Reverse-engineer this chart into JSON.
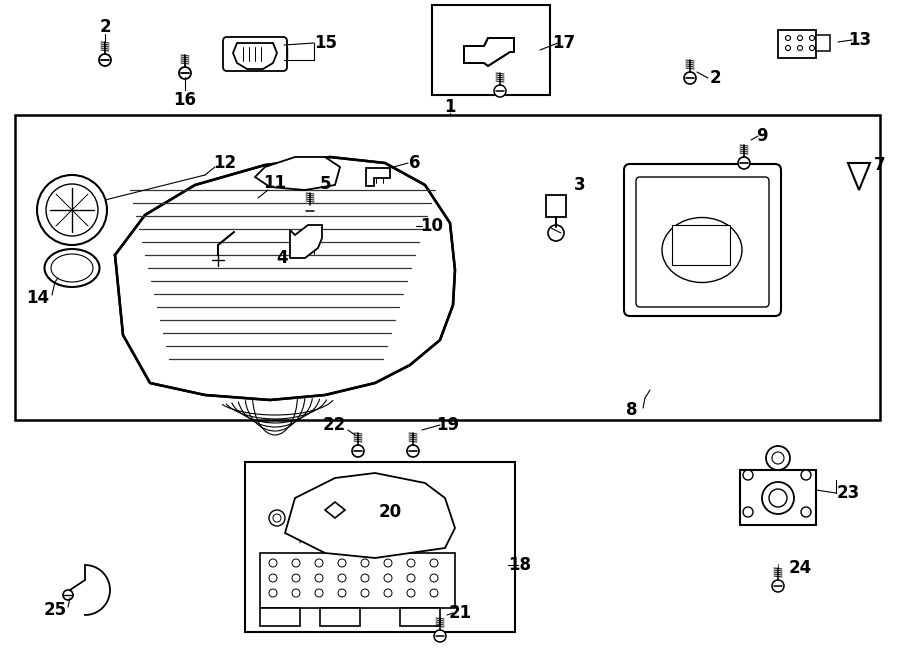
{
  "bg_color": "#ffffff",
  "lc": "#000000",
  "fig_w": 9.0,
  "fig_h": 6.62,
  "dpi": 100
}
